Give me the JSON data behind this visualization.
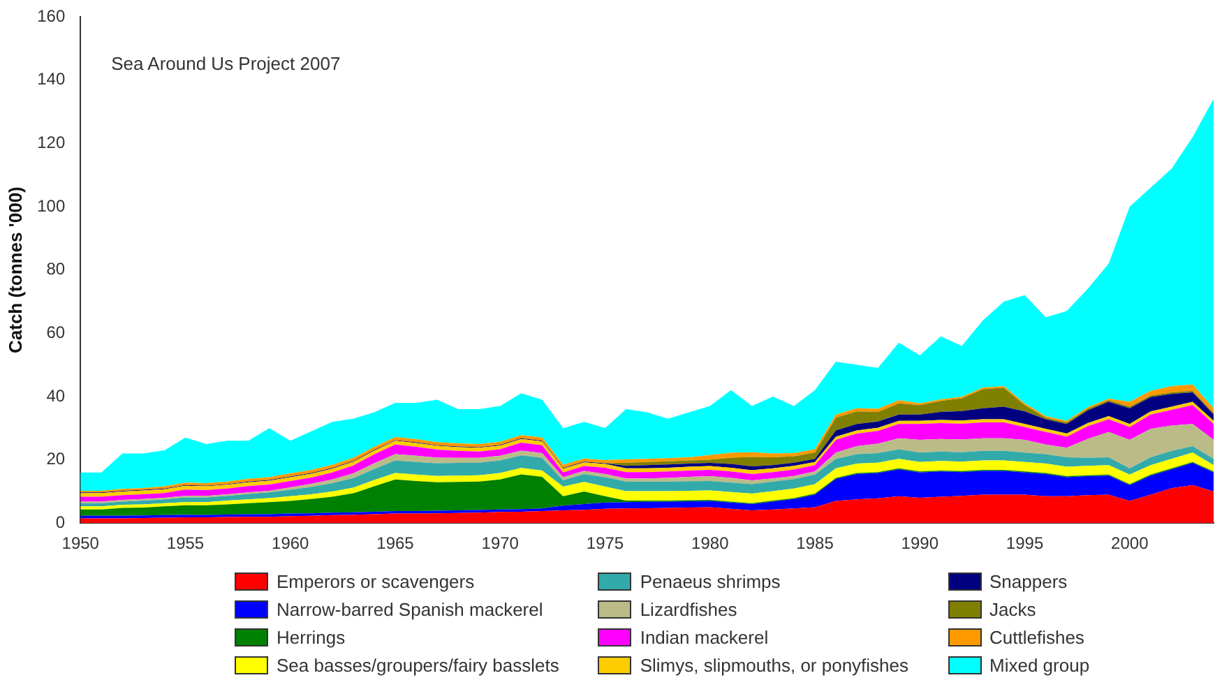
{
  "chart_data": {
    "type": "area",
    "stacked": true,
    "ylabel": "Catch (tonnes '000)",
    "annotations": [
      "Sea Around Us Project 2007"
    ],
    "legend": "bottom",
    "x": [
      1950,
      1951,
      1952,
      1953,
      1954,
      1955,
      1956,
      1957,
      1958,
      1959,
      1960,
      1961,
      1962,
      1963,
      1964,
      1965,
      1966,
      1967,
      1968,
      1969,
      1970,
      1971,
      1972,
      1973,
      1974,
      1975,
      1976,
      1977,
      1978,
      1979,
      1980,
      1981,
      1982,
      1983,
      1984,
      1985,
      1986,
      1987,
      1988,
      1989,
      1990,
      1991,
      1992,
      1993,
      1994,
      1995,
      1996,
      1997,
      1998,
      1999,
      2000,
      2001,
      2002,
      2003,
      2004
    ],
    "xlim": [
      1950,
      2004
    ],
    "xticks": [
      1950,
      1955,
      1960,
      1965,
      1970,
      1975,
      1980,
      1985,
      1990,
      1995,
      2000
    ],
    "ylim": [
      0,
      160
    ],
    "yticks": [
      0,
      20,
      40,
      60,
      80,
      100,
      120,
      140,
      160
    ],
    "series": [
      {
        "name": "Emperors or scavengers",
        "color": "#ff0000",
        "values": [
          1.5,
          1.5,
          1.5,
          1.6,
          1.7,
          1.8,
          1.8,
          1.9,
          2,
          2,
          2.2,
          2.3,
          2.5,
          2.6,
          2.8,
          3,
          3,
          3.1,
          3.2,
          3.3,
          3.5,
          3.6,
          3.8,
          4,
          4.2,
          4.5,
          4.6,
          4.7,
          4.8,
          4.9,
          5,
          4.5,
          4,
          4.3,
          4.6,
          5,
          7,
          7.5,
          7.8,
          8.5,
          8,
          8.3,
          8.6,
          9,
          9,
          9,
          8.5,
          8.5,
          8.8,
          9,
          7,
          9,
          11,
          12,
          10
        ]
      },
      {
        "name": "Narrow-barred Spanish mackerel",
        "color": "#0000ff",
        "values": [
          0.8,
          0.8,
          0.8,
          0.8,
          0.8,
          0.8,
          0.8,
          0.8,
          0.8,
          0.8,
          0.8,
          0.8,
          0.8,
          0.8,
          0.8,
          0.8,
          0.8,
          0.8,
          0.8,
          0.8,
          0.8,
          0.8,
          0.8,
          1.5,
          1.8,
          2,
          2,
          2,
          2,
          2,
          2,
          2,
          2,
          2.5,
          3,
          4,
          7,
          8,
          8,
          8.5,
          8,
          8,
          7.5,
          7.5,
          7.5,
          7,
          7,
          6,
          6,
          6,
          5,
          6,
          6,
          7,
          6
        ]
      },
      {
        "name": "Herrings",
        "color": "#008000",
        "values": [
          2,
          2,
          2.5,
          2.5,
          2.8,
          3,
          3,
          3.2,
          3.5,
          3.8,
          4,
          4.5,
          5,
          6,
          8,
          10,
          9.5,
          9,
          9,
          9,
          9.5,
          11,
          10,
          3,
          4,
          2,
          0.5,
          0.4,
          0.3,
          0.3,
          0.3,
          0.3,
          0.3,
          0.3,
          0.3,
          0.3,
          0.3,
          0.3,
          0.3,
          0.3,
          0.3,
          0.3,
          0.3,
          0.3,
          0.3,
          0.3,
          0.3,
          0.3,
          0.3,
          0.3,
          0.3,
          0.3,
          0.3,
          0.3,
          0.3
        ]
      },
      {
        "name": "Sea basses/groupers/fairy basslets",
        "color": "#ffff00",
        "values": [
          1,
          1,
          1,
          1,
          1,
          1,
          1,
          1.2,
          1.2,
          1.3,
          1.5,
          1.5,
          1.7,
          1.8,
          2,
          2,
          2,
          2,
          2,
          2,
          2,
          2,
          2,
          3,
          3,
          3,
          3,
          3,
          3,
          3,
          3,
          3,
          3,
          3,
          3,
          3,
          3,
          3,
          3,
          3,
          3,
          3,
          3,
          3,
          3,
          3,
          3,
          3,
          3,
          3,
          3,
          3,
          3,
          3,
          2
        ]
      },
      {
        "name": "Penaeus shrimps",
        "color": "#33aaaa",
        "values": [
          1,
          1,
          1,
          1.2,
          1.2,
          1.5,
          1.5,
          1.5,
          1.7,
          1.8,
          2,
          2.3,
          2.6,
          3,
          3.5,
          4,
          4,
          4,
          4,
          4,
          4,
          4,
          4,
          2,
          2.5,
          3,
          3,
          3,
          3,
          3,
          3,
          3,
          3,
          3,
          3,
          3,
          3,
          3,
          3,
          3,
          3,
          3,
          3,
          3,
          3,
          3,
          3,
          3,
          2.5,
          2.5,
          2,
          2.5,
          2.5,
          2,
          2
        ]
      },
      {
        "name": "Lizardfishes",
        "color": "#bbbb88",
        "values": [
          0.5,
          0.5,
          0.5,
          0.5,
          0.5,
          0.5,
          0.5,
          0.5,
          0.5,
          0.5,
          0.8,
          1,
          1.2,
          1.5,
          1.8,
          2,
          2,
          1.8,
          1.6,
          1.5,
          1.5,
          1.5,
          1.5,
          1,
          1,
          1,
          1,
          1,
          1.2,
          1.4,
          1.5,
          1.5,
          1.2,
          1,
          1,
          1,
          2,
          2.5,
          3,
          3.5,
          4,
          4,
          4,
          4,
          4,
          4,
          3,
          3,
          6,
          8,
          9,
          9,
          8,
          7,
          6
        ]
      },
      {
        "name": "Indian mackerel",
        "color": "#ff00ff",
        "values": [
          1.5,
          1.5,
          1.5,
          1.5,
          1.5,
          2,
          1.8,
          1.8,
          2,
          2,
          2,
          2,
          2.2,
          2.5,
          2.8,
          3,
          2.8,
          2.5,
          2.2,
          2,
          2,
          2.5,
          2.5,
          1.5,
          1.5,
          2,
          2,
          2,
          2,
          2,
          2,
          2,
          2,
          2,
          2,
          2,
          4,
          4,
          4,
          4.5,
          5,
          5,
          5,
          5,
          5,
          4,
          4,
          3.5,
          4,
          4,
          4,
          4.5,
          5,
          6,
          5
        ]
      },
      {
        "name": "Slimys, slipmouths, or ponyfishes",
        "color": "#ffcc00",
        "values": [
          1.2,
          1.2,
          1.2,
          1.2,
          1.2,
          1.2,
          1.2,
          1.2,
          1.2,
          1.2,
          1.2,
          1.2,
          1.2,
          1.2,
          1.2,
          1.2,
          1.2,
          1.2,
          1.2,
          1.2,
          1.2,
          1.2,
          1.2,
          1.2,
          1.2,
          1.2,
          1.2,
          1.2,
          1.2,
          1.2,
          1.2,
          1.2,
          1.2,
          1.2,
          1.2,
          1,
          1,
          1,
          1,
          1,
          1,
          1,
          1,
          1,
          1,
          1,
          1,
          1,
          1,
          1,
          1,
          1,
          1,
          1,
          1
        ]
      },
      {
        "name": "Snappers",
        "color": "#000080",
        "values": [
          0.2,
          0.2,
          0.2,
          0.2,
          0.2,
          0.2,
          0.2,
          0.2,
          0.2,
          0.2,
          0.2,
          0.2,
          0.2,
          0.2,
          0.2,
          0.2,
          0.2,
          0.2,
          0.2,
          0.2,
          0.2,
          0.2,
          0.2,
          0.2,
          0.2,
          0.2,
          0.8,
          1,
          1,
          1,
          1,
          1.2,
          1.2,
          1,
          1,
          1,
          2,
          2,
          2,
          2,
          2,
          2.5,
          3,
          3.5,
          4,
          4,
          3,
          3,
          4,
          4.5,
          5,
          4.5,
          4,
          3,
          2
        ]
      },
      {
        "name": "Jacks",
        "color": "#808000",
        "values": [
          0,
          0,
          0,
          0,
          0,
          0,
          0,
          0,
          0,
          0,
          0,
          0,
          0,
          0,
          0,
          0,
          0,
          0,
          0,
          0,
          0,
          0,
          0,
          0,
          0,
          0,
          1,
          1,
          1,
          1,
          1,
          2,
          3,
          2.5,
          2,
          2,
          4,
          4,
          3,
          3.5,
          3,
          3.5,
          4,
          6,
          6,
          2,
          0.5,
          0.5,
          0.5,
          0.5,
          0.5,
          0.5,
          0.5,
          0.5,
          0.5
        ]
      },
      {
        "name": "Cuttlefishes",
        "color": "#ff9900",
        "values": [
          0.5,
          0.5,
          0.6,
          0.6,
          0.7,
          0.8,
          0.8,
          0.8,
          0.9,
          0.9,
          1,
          1,
          1,
          1,
          1,
          1,
          1,
          1,
          1,
          1,
          1,
          1,
          1,
          1,
          1,
          1,
          1,
          1,
          1,
          1,
          1.5,
          1.5,
          1.5,
          1.2,
          1,
          1,
          1,
          1,
          1,
          1,
          0.5,
          0.5,
          0.5,
          0.5,
          0.5,
          0.5,
          0.5,
          0.5,
          0.5,
          0.5,
          1.5,
          1.5,
          2,
          2,
          1.5
        ]
      },
      {
        "name": "Mixed group",
        "color": "#00ffff",
        "values": [
          5.8,
          5.8,
          11.2,
          10.9,
          11.4,
          14.2,
          12.4,
          12.9,
          12,
          15.5,
          10.3,
          12.2,
          13.6,
          12.4,
          10.9,
          10.8,
          11.5,
          13.4,
          10.8,
          11,
          11.3,
          13.2,
          12,
          11.6,
          11.6,
          10.1,
          15.9,
          14.7,
          12.5,
          14.2,
          15.5,
          19.8,
          14.6,
          18,
          14.9,
          18.7,
          16.7,
          13.7,
          12.9,
          18.2,
          15.2,
          19.9,
          16.1,
          21.2,
          26.7,
          34.2,
          31.2,
          34.7,
          37.4,
          42.7,
          61.7,
          64.2,
          68.7,
          78.2,
          97.7
        ]
      }
    ]
  }
}
